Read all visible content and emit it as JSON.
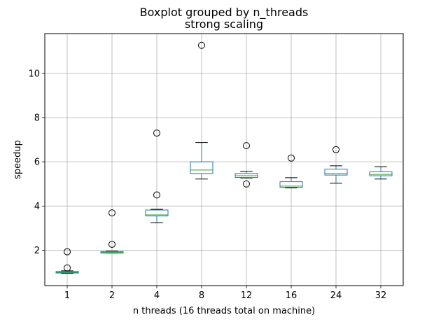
{
  "chart_data": {
    "type": "boxplot",
    "title": "Boxplot grouped by n_threads",
    "subtitle": "strong scaling",
    "xlabel": "n threads (16 threads total on machine)",
    "ylabel": "speedup",
    "ylim": [
      0.4,
      11.8
    ],
    "yticks": [
      2,
      4,
      6,
      8,
      10
    ],
    "grid": true,
    "categories": [
      "1",
      "2",
      "4",
      "8",
      "12",
      "16",
      "24",
      "32"
    ],
    "boxes": [
      {
        "whislo": 0.95,
        "q1": 0.97,
        "med": 1.0,
        "q3": 1.04,
        "whishi": 1.07,
        "fliers": [
          1.2,
          1.93
        ]
      },
      {
        "whislo": 1.87,
        "q1": 1.87,
        "med": 1.9,
        "q3": 1.94,
        "whishi": 1.96,
        "fliers": [
          2.27,
          3.69
        ]
      },
      {
        "whislo": 3.25,
        "q1": 3.55,
        "med": 3.6,
        "q3": 3.82,
        "whishi": 3.85,
        "fliers": [
          4.5,
          7.3
        ]
      },
      {
        "whislo": 5.22,
        "q1": 5.47,
        "med": 5.63,
        "q3": 6.0,
        "whishi": 6.87,
        "fliers": [
          11.27
        ]
      },
      {
        "whislo": 5.27,
        "q1": 5.29,
        "med": 5.37,
        "q3": 5.47,
        "whishi": 5.57,
        "fliers": [
          5.0,
          6.73
        ]
      },
      {
        "whislo": 4.82,
        "q1": 4.85,
        "med": 4.9,
        "q3": 5.1,
        "whishi": 5.28,
        "fliers": [
          6.17
        ]
      },
      {
        "whislo": 5.03,
        "q1": 5.4,
        "med": 5.47,
        "q3": 5.67,
        "whishi": 5.82,
        "fliers": [
          6.55
        ]
      },
      {
        "whislo": 5.22,
        "q1": 5.37,
        "med": 5.43,
        "q3": 5.55,
        "whishi": 5.78,
        "fliers": []
      }
    ],
    "colors": {
      "box": "#1f77b4",
      "median": "#2ca02c",
      "whisker_cap": "#000000",
      "grid": "#b0b0b0"
    }
  }
}
